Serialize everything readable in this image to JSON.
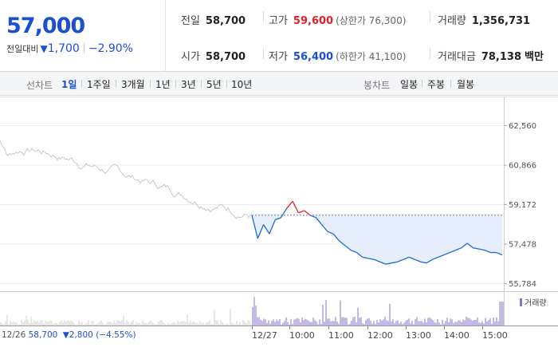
{
  "quote": {
    "price": "57,000",
    "change_label": "전일대비",
    "change_arrow": "▼",
    "change_value": "1,700",
    "change_rate": "−2.90%"
  },
  "stats": {
    "prev_close": {
      "label": "전일",
      "value": "58,700"
    },
    "high": {
      "label": "고가",
      "value": "59,600",
      "sub": "(상한가 76,300)"
    },
    "volume": {
      "label": "거래량",
      "value": "1,356,731"
    },
    "open": {
      "label": "시가",
      "value": "58,700"
    },
    "low": {
      "label": "저가",
      "value": "56,400",
      "sub": "(하한가 41,100)"
    },
    "amount": {
      "label": "거래대금",
      "value": "78,138",
      "unit": "백만"
    }
  },
  "toolbar": {
    "line_chart_label": "선차트",
    "periods": [
      "1일",
      "1주일",
      "3개월",
      "1년",
      "3년",
      "5년",
      "10년"
    ],
    "active_period": "1일",
    "candle_chart_label": "봉차트",
    "candles": [
      "일봉",
      "주봉",
      "월봉"
    ]
  },
  "chart": {
    "y_ticks": [
      "62,560",
      "60,866",
      "59,172",
      "57,478",
      "55,784"
    ],
    "x_labels": [
      "12/27",
      "10:00",
      "11:00",
      "12:00",
      "13:00",
      "14:00",
      "15:00"
    ],
    "prev_day": {
      "date": "12/26",
      "price": "58,700",
      "arrow": "▼",
      "change": "2,800",
      "rate": "(−4.55%)"
    },
    "volume_legend": "거래량",
    "colors": {
      "line": "#1c6bd1",
      "up": "#e0202b",
      "fill": "#e6eefb",
      "prev": "#c8c8c8",
      "volume": "#8a72c8"
    }
  },
  "chart_data": {
    "type": "line",
    "y_ticks": [
      62560,
      60866,
      59172,
      57478,
      55784
    ],
    "ylim": [
      55784,
      62560
    ],
    "reference_price": 58700,
    "x_labels": [
      "12/27",
      "10:00",
      "11:00",
      "12:00",
      "13:00",
      "14:00",
      "15:00"
    ],
    "series": [
      {
        "name": "",
        "values": [
          58700,
          57700,
          58300,
          57900,
          58500,
          58600,
          59000,
          59300,
          58800,
          58900,
          58700,
          58600,
          58300,
          58000,
          57900,
          57600,
          57400,
          57200,
          57100,
          56900,
          56850,
          56800,
          56700,
          56600,
          56650,
          56700,
          56800,
          56900,
          56800,
          56700,
          56650,
          56800,
          56900,
          57000,
          57100,
          57200,
          57300,
          57500,
          57300,
          57250,
          57200,
          57100,
          57100,
          57000
        ]
      }
    ]
  }
}
